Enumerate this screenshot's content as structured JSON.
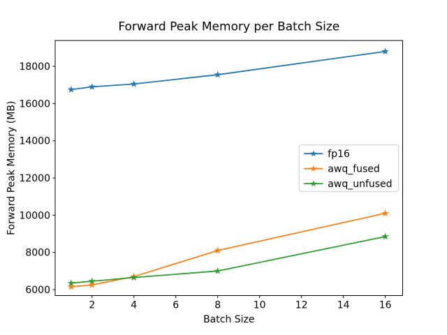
{
  "figure": {
    "background": "#ffffff",
    "frame_color": "#000000"
  },
  "chart_data": {
    "type": "line",
    "title": "Forward Peak Memory per Batch Size",
    "xlabel": "Batch Size",
    "ylabel": "Forward Peak Memory (MB)",
    "x": [
      1,
      2,
      4,
      8,
      16
    ],
    "series": [
      {
        "name": "fp16",
        "color": "#1f77b4",
        "values": [
          16750,
          16900,
          17050,
          17550,
          18800
        ]
      },
      {
        "name": "awq_fused",
        "color": "#ff7f0e",
        "values": [
          6150,
          6250,
          6700,
          8100,
          10100
        ]
      },
      {
        "name": "awq_unfused",
        "color": "#2ca02c",
        "values": [
          6350,
          6450,
          6650,
          7000,
          8850
        ]
      }
    ],
    "marker": "star",
    "x_ticks": [
      2,
      4,
      6,
      8,
      10,
      12,
      14,
      16
    ],
    "y_ticks": [
      6000,
      8000,
      10000,
      12000,
      14000,
      16000,
      18000
    ],
    "xlim": [
      0.24,
      16.83
    ],
    "ylim": [
      5680,
      19390
    ],
    "grid": false,
    "legend_position": "center-right",
    "legend_labels": [
      "fp16",
      "awq_fused",
      "awq_unfused"
    ]
  }
}
